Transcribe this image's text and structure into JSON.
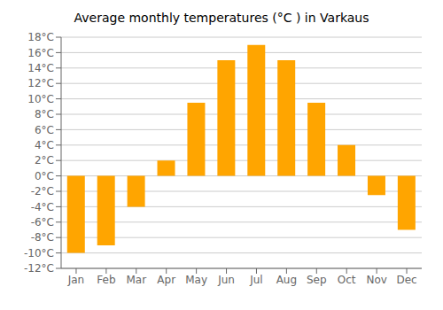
{
  "chart_data": {
    "type": "bar",
    "title": "Average monthly temperatures (°C ) in Varkaus",
    "categories": [
      "Jan",
      "Feb",
      "Mar",
      "Apr",
      "May",
      "Jun",
      "Jul",
      "Aug",
      "Sep",
      "Oct",
      "Nov",
      "Dec"
    ],
    "values": [
      -10.0,
      -9.0,
      -4.0,
      2.0,
      9.5,
      15.0,
      17.0,
      15.0,
      9.5,
      4.0,
      -2.5,
      -7.0
    ],
    "color": "#FFA500",
    "ylim": [
      -12,
      18
    ],
    "yticks": [
      {
        "value": -12,
        "label": "-12°C"
      },
      {
        "value": -10,
        "label": "-10°C"
      },
      {
        "value": -8,
        "label": "-8°C"
      },
      {
        "value": -6,
        "label": "-6°C"
      },
      {
        "value": -4,
        "label": "-4°C"
      },
      {
        "value": -2,
        "label": "-2°C"
      },
      {
        "value": 0,
        "label": "0°C"
      },
      {
        "value": 2,
        "label": "2°C"
      },
      {
        "value": 4,
        "label": "4°C"
      },
      {
        "value": 6,
        "label": "6°C"
      },
      {
        "value": 8,
        "label": "8°C"
      },
      {
        "value": 10,
        "label": "10°C"
      },
      {
        "value": 12,
        "label": "12°C"
      },
      {
        "value": 14,
        "label": "14°C"
      },
      {
        "value": 16,
        "label": "16°C"
      },
      {
        "value": 18,
        "label": "18°C"
      }
    ],
    "grid": true
  }
}
